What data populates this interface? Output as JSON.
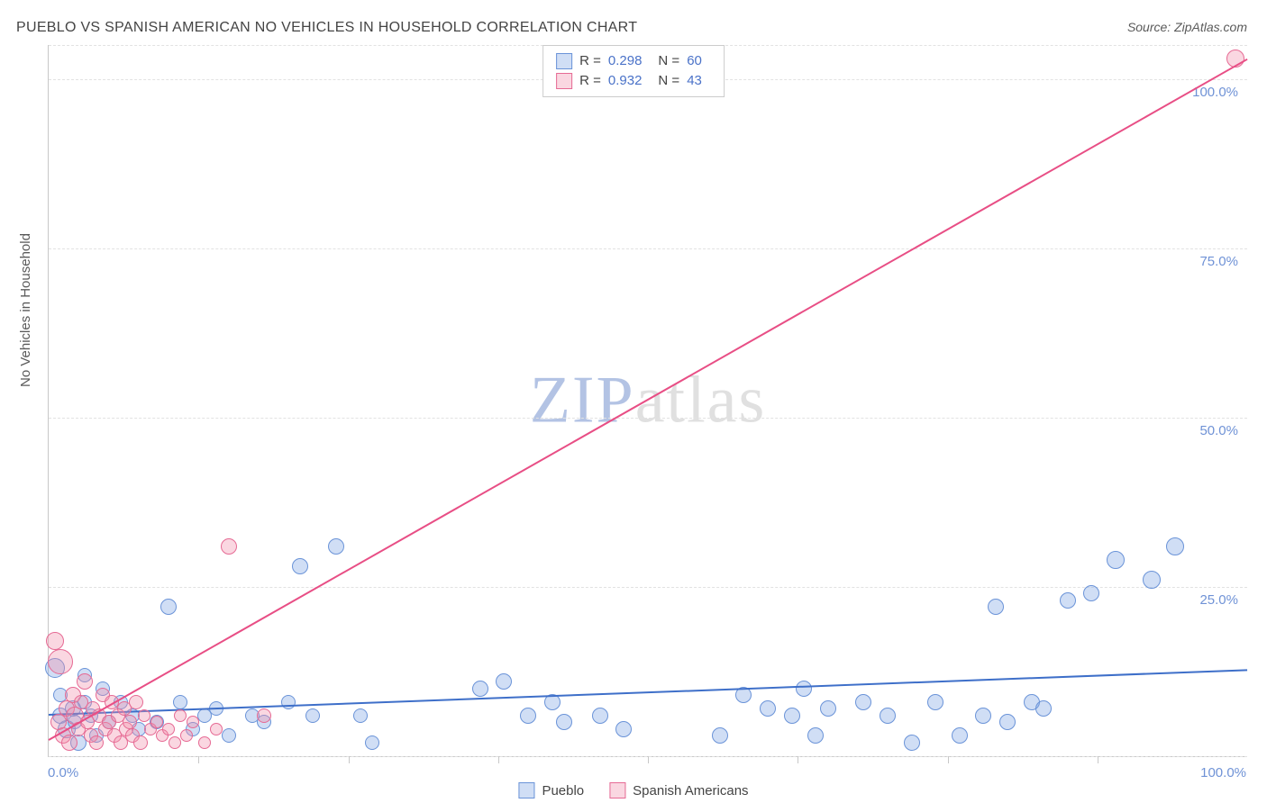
{
  "title": "PUEBLO VS SPANISH AMERICAN NO VEHICLES IN HOUSEHOLD CORRELATION CHART",
  "source_label": "Source: ZipAtlas.com",
  "y_axis_label": "No Vehicles in Household",
  "watermark_a": "ZIP",
  "watermark_b": "atlas",
  "chart": {
    "type": "scatter",
    "xlim": [
      0,
      100
    ],
    "ylim": [
      0,
      105
    ],
    "background_color": "#ffffff",
    "grid_color": "#e2e2e2",
    "grid_style": "dashed",
    "grid_y_positions": [
      0,
      25,
      50,
      75,
      100,
      105
    ],
    "x_tick_positions": [
      12.5,
      25,
      37.5,
      50,
      62.5,
      75,
      87.5
    ],
    "y_tick_labels": [
      {
        "value": 25,
        "text": "25.0%"
      },
      {
        "value": 50,
        "text": "50.0%"
      },
      {
        "value": 75,
        "text": "75.0%"
      },
      {
        "value": 100,
        "text": "100.0%"
      }
    ],
    "x_origin_label": "0.0%",
    "x_max_label": "100.0%",
    "series": [
      {
        "name": "Pueblo",
        "marker_fill": "rgba(120,160,225,0.35)",
        "marker_stroke": "#6a93d8",
        "marker_radius_base": 8,
        "trend": {
          "color": "#3e6fc9",
          "width": 2,
          "x1": 0,
          "y1": 6.2,
          "x2": 100,
          "y2": 12.8
        },
        "r_value": "0.298",
        "n_value": "60",
        "points": [
          [
            0.5,
            13,
            11
          ],
          [
            1,
            6,
            9
          ],
          [
            1,
            9,
            8
          ],
          [
            1.5,
            4,
            10
          ],
          [
            2,
            7,
            9
          ],
          [
            2.2,
            5,
            8
          ],
          [
            2.5,
            2,
            9
          ],
          [
            3,
            8,
            8
          ],
          [
            3,
            12,
            8
          ],
          [
            3.5,
            6,
            8
          ],
          [
            4,
            3,
            8
          ],
          [
            4.5,
            10,
            8
          ],
          [
            5,
            5,
            8
          ],
          [
            6,
            8,
            8
          ],
          [
            7,
            6,
            8
          ],
          [
            7.5,
            4,
            8
          ],
          [
            9,
            5,
            8
          ],
          [
            10,
            22,
            9
          ],
          [
            11,
            8,
            8
          ],
          [
            12,
            4,
            8
          ],
          [
            13,
            6,
            8
          ],
          [
            14,
            7,
            8
          ],
          [
            15,
            3,
            8
          ],
          [
            17,
            6,
            8
          ],
          [
            18,
            5,
            8
          ],
          [
            20,
            8,
            8
          ],
          [
            21,
            28,
            9
          ],
          [
            22,
            6,
            8
          ],
          [
            24,
            31,
            9
          ],
          [
            26,
            6,
            8
          ],
          [
            27,
            2,
            8
          ],
          [
            36,
            10,
            9
          ],
          [
            38,
            11,
            9
          ],
          [
            40,
            6,
            9
          ],
          [
            42,
            8,
            9
          ],
          [
            43,
            5,
            9
          ],
          [
            46,
            6,
            9
          ],
          [
            48,
            4,
            9
          ],
          [
            56,
            3,
            9
          ],
          [
            58,
            9,
            9
          ],
          [
            60,
            7,
            9
          ],
          [
            62,
            6,
            9
          ],
          [
            63,
            10,
            9
          ],
          [
            64,
            3,
            9
          ],
          [
            65,
            7,
            9
          ],
          [
            68,
            8,
            9
          ],
          [
            70,
            6,
            9
          ],
          [
            72,
            2,
            9
          ],
          [
            74,
            8,
            9
          ],
          [
            76,
            3,
            9
          ],
          [
            78,
            6,
            9
          ],
          [
            79,
            22,
            9
          ],
          [
            80,
            5,
            9
          ],
          [
            82,
            8,
            9
          ],
          [
            83,
            7,
            9
          ],
          [
            85,
            23,
            9
          ],
          [
            87,
            24,
            9
          ],
          [
            89,
            29,
            10
          ],
          [
            92,
            26,
            10
          ],
          [
            94,
            31,
            10
          ]
        ]
      },
      {
        "name": "Spanish Americans",
        "marker_fill": "rgba(240,140,170,0.35)",
        "marker_stroke": "#e66a94",
        "marker_radius_base": 8,
        "trend": {
          "color": "#e84e85",
          "width": 2,
          "x1": 0,
          "y1": 2.5,
          "x2": 100,
          "y2": 103
        },
        "r_value": "0.932",
        "n_value": "43",
        "points": [
          [
            0.5,
            17,
            10
          ],
          [
            0.8,
            5,
            9
          ],
          [
            1,
            14,
            14
          ],
          [
            1.2,
            3,
            9
          ],
          [
            1.5,
            7,
            9
          ],
          [
            1.7,
            2,
            9
          ],
          [
            2,
            9,
            9
          ],
          [
            2.2,
            6,
            10
          ],
          [
            2.5,
            4,
            8
          ],
          [
            2.7,
            8,
            8
          ],
          [
            3,
            11,
            9
          ],
          [
            3.2,
            5,
            8
          ],
          [
            3.5,
            3,
            8
          ],
          [
            3.7,
            7,
            8
          ],
          [
            4,
            2,
            8
          ],
          [
            4.2,
            6,
            8
          ],
          [
            4.5,
            9,
            8
          ],
          [
            4.7,
            4,
            8
          ],
          [
            5,
            5,
            8
          ],
          [
            5.3,
            8,
            8
          ],
          [
            5.5,
            3,
            8
          ],
          [
            5.8,
            6,
            8
          ],
          [
            6,
            2,
            8
          ],
          [
            6.3,
            7,
            8
          ],
          [
            6.5,
            4,
            8
          ],
          [
            6.8,
            5,
            8
          ],
          [
            7,
            3,
            8
          ],
          [
            7.3,
            8,
            8
          ],
          [
            7.7,
            2,
            8
          ],
          [
            8,
            6,
            7
          ],
          [
            8.5,
            4,
            7
          ],
          [
            9,
            5,
            7
          ],
          [
            9.5,
            3,
            7
          ],
          [
            10,
            4,
            7
          ],
          [
            10.5,
            2,
            7
          ],
          [
            11,
            6,
            7
          ],
          [
            11.5,
            3,
            7
          ],
          [
            12,
            5,
            7
          ],
          [
            13,
            2,
            7
          ],
          [
            14,
            4,
            7
          ],
          [
            15,
            31,
            9
          ],
          [
            18,
            6,
            8
          ],
          [
            99,
            103,
            10
          ]
        ]
      }
    ],
    "legend_top": {
      "r_label": "R =",
      "n_label": "N ="
    },
    "legend_bottom_labels": [
      "Pueblo",
      "Spanish Americans"
    ]
  }
}
